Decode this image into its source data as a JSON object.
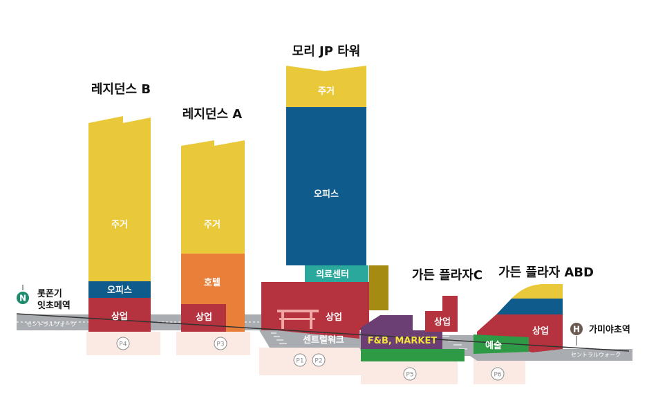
{
  "colors": {
    "residential": "#e9c93a",
    "office": "#0f5b8b",
    "commercial": "#b5333f",
    "hotel": "#e8803a",
    "medical": "#2aa89c",
    "fnb": "#6b3f73",
    "art": "#2f9a46",
    "olive": "#a68b12",
    "walkway": "#a9adb2",
    "parking": "#fbe9e4"
  },
  "buildings": {
    "residence_b": {
      "title": "레지던스 B",
      "residential": "주거",
      "office": "오피스",
      "commercial": "상업"
    },
    "residence_a": {
      "title": "레지던스 A",
      "residential": "주거",
      "hotel": "호텔",
      "commercial": "상업"
    },
    "mori_tower": {
      "title": "모리 JP 타워",
      "residential": "주거",
      "office": "오피스",
      "medical": "의료센터",
      "commercial": "상업"
    },
    "garden_plaza_c": {
      "title": "가든 플라자C",
      "commercial": "상업"
    },
    "garden_plaza_abd": {
      "title": "가든 플라자 ABD",
      "commercial": "상업",
      "art": "예술"
    }
  },
  "underground": {
    "central_walk": "센트럴워크",
    "fnb_market": "F&B, MARKET"
  },
  "walkway": {
    "left_label": "セントラルウォーク",
    "right_label": "セントラルウォーク"
  },
  "stations": {
    "left": {
      "badge": "N",
      "line1": "롯폰기",
      "line2": "잇초메역"
    },
    "right": {
      "badge": "H",
      "name": "가미야초역"
    }
  },
  "parking": [
    "P4",
    "P3",
    "P1",
    "P2",
    "P5",
    "P6"
  ]
}
